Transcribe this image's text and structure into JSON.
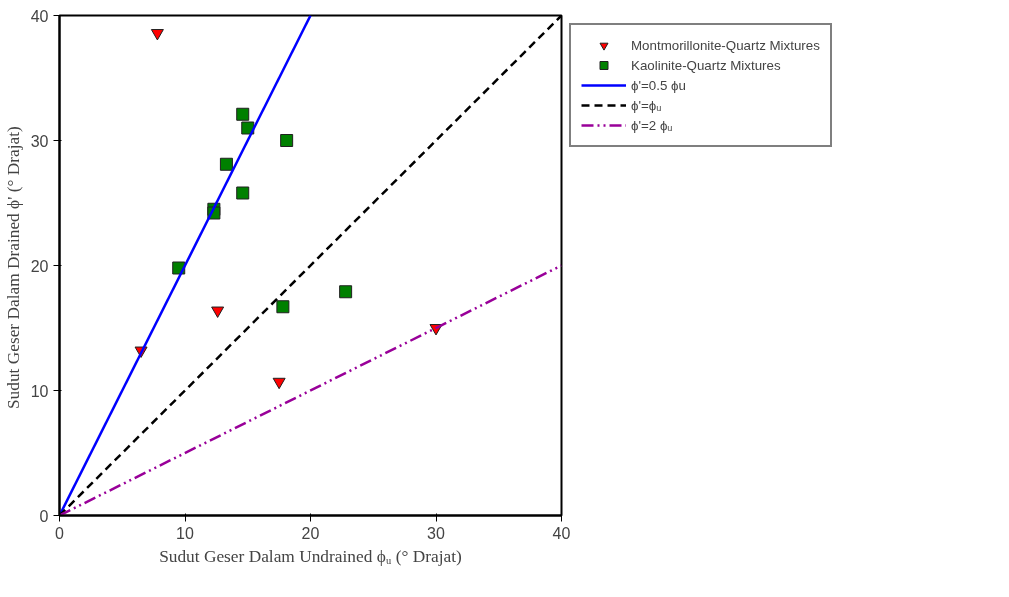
{
  "chart_data": {
    "type": "scatter",
    "xlabel": "Sudut Geser Dalam Undrained ϕᵤ (° Drajat)",
    "ylabel": "Sudut Geser Dalam Drained  ϕ' (° Drajat)",
    "xlim": [
      0,
      40
    ],
    "ylim": [
      0,
      40
    ],
    "xticks": [
      0,
      10,
      20,
      30,
      40
    ],
    "yticks": [
      0,
      10,
      20,
      30,
      40
    ],
    "grid": false,
    "legend": "top right",
    "series": [
      {
        "name": "Montmorillonite-Quartz Mixtures",
        "marker": "triangle",
        "color": "#ff0000",
        "x": [
          7.8,
          6.5,
          12.6,
          17.5,
          30.0
        ],
        "values": [
          38.6,
          13.2,
          16.4,
          10.7,
          15.0
        ]
      },
      {
        "name": "Kaolinite-Quartz Mixtures",
        "marker": "square",
        "color": "#008000",
        "x": [
          14.6,
          15.0,
          18.1,
          13.3,
          14.6,
          12.3,
          12.3,
          9.5,
          17.8,
          22.8
        ],
        "values": [
          32.1,
          31.0,
          30.0,
          28.1,
          25.8,
          24.5,
          24.2,
          19.8,
          16.7,
          17.9
        ]
      },
      {
        "name": "ϕ'=0.5 ϕu",
        "type": "line",
        "line_style": "solid",
        "color": "#0000ff",
        "x": [
          0,
          20
        ],
        "values": [
          0,
          40
        ]
      },
      {
        "name": "ϕ'=ϕᵤ",
        "type": "line",
        "line_style": "dashed",
        "color": "#000000",
        "x": [
          0,
          40
        ],
        "values": [
          0,
          40
        ]
      },
      {
        "name": "ϕ'=2 ϕᵤ",
        "type": "line",
        "line_style": "dashdot",
        "color": "#990099",
        "x": [
          0,
          40
        ],
        "values": [
          0,
          20
        ]
      }
    ]
  }
}
